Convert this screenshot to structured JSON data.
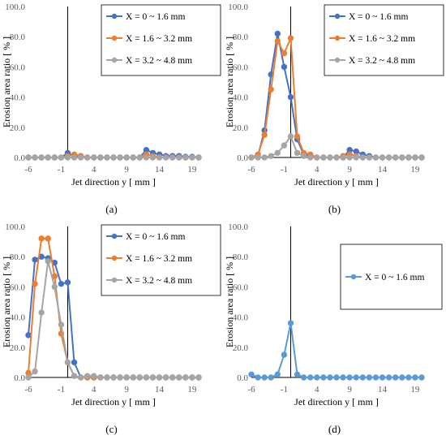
{
  "chart_data": [
    {
      "type": "line",
      "caption": "(a)",
      "xlabel": "Jet direction  y [ mm ]",
      "ylabel": "Erosion area ratio [ % ]",
      "xticks": [
        "-6",
        "-1",
        "4",
        "9",
        "14",
        "19"
      ],
      "yticks": [
        "0.0",
        "20.0",
        "40.0",
        "60.0",
        "80.0",
        "100.0"
      ],
      "xlim": [
        -6,
        20
      ],
      "ylim": [
        0,
        100
      ],
      "vline_x": 0,
      "legend_position": "top-right",
      "series": [
        {
          "name": "X =     0 ~ 1.6 mm",
          "color": "#4472C4",
          "x": [
            -6,
            -5,
            -4,
            -3,
            -2,
            -1,
            0,
            1,
            2,
            3,
            4,
            5,
            6,
            7,
            8,
            9,
            10,
            11,
            12,
            13,
            14,
            15,
            16,
            17,
            18,
            19,
            20
          ],
          "y": [
            0,
            0,
            0,
            0,
            0,
            0,
            3,
            1,
            1,
            0,
            0,
            0,
            0,
            0,
            0,
            0,
            0,
            0,
            5,
            3,
            2,
            1,
            1,
            1,
            0.5,
            0.5,
            0
          ]
        },
        {
          "name": "X = 1.6 ~ 3.2 mm",
          "color": "#ED7D31",
          "x": [
            -6,
            -5,
            -4,
            -3,
            -2,
            -1,
            0,
            1,
            2,
            3,
            4,
            5,
            6,
            7,
            8,
            9,
            10,
            11,
            12,
            13,
            14,
            15,
            16,
            17,
            18,
            19,
            20
          ],
          "y": [
            0,
            0,
            0,
            0,
            0,
            0,
            1,
            2,
            1,
            0,
            0,
            0,
            0,
            0,
            0,
            0,
            0,
            0,
            2,
            1,
            0,
            0,
            0,
            0,
            0,
            0,
            0
          ]
        },
        {
          "name": "X = 3.2 ~ 4.8 mm",
          "color": "#A5A5A5",
          "x": [
            -6,
            -5,
            -4,
            -3,
            -2,
            -1,
            0,
            1,
            2,
            3,
            4,
            5,
            6,
            7,
            8,
            9,
            10,
            11,
            12,
            13,
            14,
            15,
            16,
            17,
            18,
            19,
            20
          ],
          "y": [
            0,
            0,
            0,
            0,
            0,
            0,
            0,
            0,
            0,
            0,
            0,
            0,
            0,
            0,
            0,
            0,
            0,
            0,
            0,
            0,
            0,
            0,
            0,
            0,
            0,
            0,
            0
          ]
        }
      ]
    },
    {
      "type": "line",
      "caption": "(b)",
      "xlabel": "Jet direction  y [ mm ]",
      "ylabel": "Erosion area ratio [ % ]",
      "xticks": [
        "-6",
        "-1",
        "4",
        "9",
        "14",
        "19"
      ],
      "yticks": [
        "0.0",
        "20.0",
        "40.0",
        "60.0",
        "80.0",
        "100.0"
      ],
      "xlim": [
        -6,
        20
      ],
      "ylim": [
        0,
        100
      ],
      "vline_x": 0,
      "legend_position": "top-right",
      "series": [
        {
          "name": "X =     0 ~ 1.6 mm",
          "color": "#4472C4",
          "x": [
            -6,
            -5,
            -4,
            -3,
            -2,
            -1,
            0,
            1,
            2,
            3,
            4,
            5,
            6,
            7,
            8,
            9,
            10,
            11,
            12,
            13,
            14,
            15,
            16,
            17,
            18,
            19,
            20
          ],
          "y": [
            0,
            1,
            18,
            55,
            82,
            60,
            40,
            12,
            2,
            1,
            0,
            0,
            0,
            0,
            0,
            5,
            4,
            2,
            1,
            0,
            0,
            0,
            0,
            0,
            0,
            0,
            0
          ]
        },
        {
          "name": "X = 1.6 ~ 3.2 mm",
          "color": "#ED7D31",
          "x": [
            -6,
            -5,
            -4,
            -3,
            -2,
            -1,
            0,
            1,
            2,
            3,
            4,
            5,
            6,
            7,
            8,
            9,
            10,
            11,
            12,
            13,
            14,
            15,
            16,
            17,
            18,
            19,
            20
          ],
          "y": [
            0,
            2,
            15,
            45,
            77,
            69,
            79,
            14,
            3,
            2,
            0,
            0,
            0,
            0,
            1,
            2,
            1,
            0,
            0,
            0,
            0,
            0,
            0,
            0,
            0,
            0,
            0
          ]
        },
        {
          "name": "X = 3.2 ~ 4.8 mm",
          "color": "#A5A5A5",
          "x": [
            -6,
            -5,
            -4,
            -3,
            -2,
            -1,
            0,
            1,
            2,
            3,
            4,
            5,
            6,
            7,
            8,
            9,
            10,
            11,
            12,
            13,
            14,
            15,
            16,
            17,
            18,
            19,
            20
          ],
          "y": [
            0,
            0,
            0,
            1,
            3,
            8,
            14,
            3,
            1,
            0,
            0,
            0,
            0,
            0,
            0,
            0,
            0,
            0,
            0,
            0,
            0,
            0,
            0,
            0,
            0,
            0,
            0
          ]
        }
      ]
    },
    {
      "type": "line",
      "caption": "(c)",
      "xlabel": "Jet direction  y [ mm ]",
      "ylabel": "Erosion area ratio [ % ]",
      "xticks": [
        "-6",
        "-1",
        "4",
        "9",
        "14",
        "19"
      ],
      "yticks": [
        "0.0",
        "20.0",
        "40.0",
        "60.0",
        "80.0",
        "100.0"
      ],
      "xlim": [
        -6,
        20
      ],
      "ylim": [
        0,
        100
      ],
      "vline_x": 0,
      "legend_position": "top-right",
      "series": [
        {
          "name": "X =     0 ~ 1.6 mm",
          "color": "#4472C4",
          "x": [
            -6,
            -5,
            -4,
            -3,
            -2,
            -1,
            0,
            1,
            2,
            3,
            4,
            5,
            6,
            7,
            8,
            9,
            10,
            11,
            12,
            13,
            14,
            15,
            16,
            17,
            18,
            19,
            20
          ],
          "y": [
            28,
            78,
            80,
            79,
            76,
            62,
            63,
            10,
            0,
            0,
            0,
            0,
            0,
            0,
            0,
            0,
            0,
            0,
            0,
            0,
            0,
            0,
            0,
            0,
            0,
            0,
            0
          ]
        },
        {
          "name": "X = 1.6 ~ 3.2 mm",
          "color": "#ED7D31",
          "x": [
            -6,
            -5,
            -4,
            -3,
            -2,
            -1,
            0,
            1,
            2,
            3,
            4,
            5,
            6,
            7,
            8,
            9,
            10,
            11,
            12,
            13,
            14,
            15,
            16,
            17,
            18,
            19,
            20
          ],
          "y": [
            3,
            62,
            92,
            92,
            67,
            29,
            10,
            1,
            0,
            0,
            0,
            0,
            0,
            0,
            0,
            0,
            0,
            0,
            0,
            0,
            0,
            0,
            0,
            0,
            0,
            0,
            0
          ]
        },
        {
          "name": "X = 3.2 ~ 4.8 mm",
          "color": "#A5A5A5",
          "x": [
            -6,
            -5,
            -4,
            -3,
            -2,
            -1,
            0,
            1,
            2,
            3,
            4,
            5,
            6,
            7,
            8,
            9,
            10,
            11,
            12,
            13,
            14,
            15,
            16,
            17,
            18,
            19,
            20
          ],
          "y": [
            0,
            4,
            43,
            77,
            60,
            35,
            10,
            1,
            0,
            1,
            1,
            0,
            0,
            0,
            0,
            0,
            0,
            0,
            0,
            0,
            0,
            0,
            0,
            0,
            0,
            0,
            0
          ]
        }
      ]
    },
    {
      "type": "line",
      "caption": "(d)",
      "xlabel": "Jet direction  y [ mm ]",
      "ylabel": "Erosion area ratio [ % ]",
      "xticks": [
        "-6",
        "-1",
        "4",
        "9",
        "14",
        "19"
      ],
      "yticks": [
        "0.0",
        "20.0",
        "40.0",
        "60.0",
        "80.0",
        "100.0"
      ],
      "xlim": [
        -6,
        20
      ],
      "ylim": [
        0,
        100
      ],
      "vline_x": 0,
      "legend_position": "right",
      "series": [
        {
          "name": "X =     0 ~ 1.6 mm",
          "color": "#5B9BD5",
          "x": [
            -6,
            -5,
            -4,
            -3,
            -2,
            -1,
            0,
            1,
            2,
            3,
            4,
            5,
            6,
            7,
            8,
            9,
            10,
            11,
            12,
            13,
            14,
            15,
            16,
            17,
            18,
            19,
            20
          ],
          "y": [
            2,
            0,
            0,
            0,
            2,
            15,
            36,
            2,
            0,
            0,
            0,
            0,
            0,
            0,
            0,
            0,
            0,
            0,
            0,
            0,
            0,
            0,
            0,
            0,
            0,
            0,
            0
          ]
        }
      ]
    }
  ]
}
